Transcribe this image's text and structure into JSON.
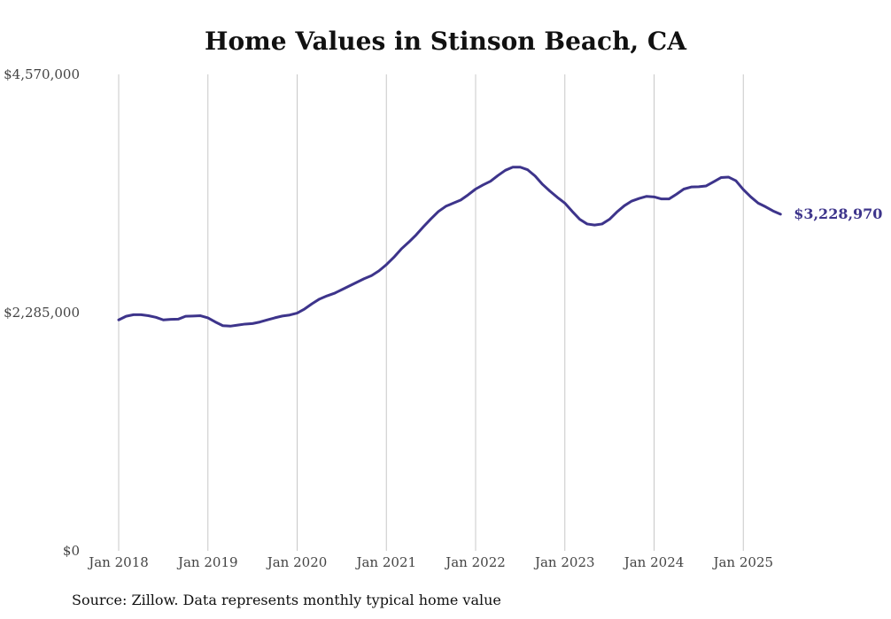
{
  "chart_data": {
    "type": "line",
    "title": "Home Values in Stinson Beach, CA",
    "source": "Source: Zillow. Data represents monthly typical home value",
    "xlabel": "",
    "ylabel": "",
    "ylim": [
      0,
      4570000
    ],
    "y_ticks": [
      {
        "value": 0,
        "label": "$0"
      },
      {
        "value": 2285000,
        "label": "$2,285,000"
      },
      {
        "value": 4570000,
        "label": "$4,570,000"
      }
    ],
    "x_range": [
      "2018-01",
      "2025-05"
    ],
    "x_ticks": [
      {
        "date": "2018-01",
        "label": "Jan 2018"
      },
      {
        "date": "2019-01",
        "label": "Jan 2019"
      },
      {
        "date": "2020-01",
        "label": "Jan 2020"
      },
      {
        "date": "2021-01",
        "label": "Jan 2021"
      },
      {
        "date": "2022-01",
        "label": "Jan 2022"
      },
      {
        "date": "2023-01",
        "label": "Jan 2023"
      },
      {
        "date": "2024-01",
        "label": "Jan 2024"
      },
      {
        "date": "2025-01",
        "label": "Jan 2025"
      }
    ],
    "grid": {
      "vertical": true,
      "horizontal": false
    },
    "line_color": "#3d348b",
    "end_label": "$3,228,970",
    "series": [
      {
        "points": [
          [
            "2018-01",
            2215000
          ],
          [
            "2018-02",
            2250000
          ],
          [
            "2018-03",
            2265000
          ],
          [
            "2018-04",
            2265000
          ],
          [
            "2018-05",
            2255000
          ],
          [
            "2018-06",
            2240000
          ],
          [
            "2018-07",
            2215000
          ],
          [
            "2018-08",
            2220000
          ],
          [
            "2018-09",
            2222000
          ],
          [
            "2018-10",
            2250000
          ],
          [
            "2018-11",
            2252000
          ],
          [
            "2018-12",
            2255000
          ],
          [
            "2019-01",
            2235000
          ],
          [
            "2019-02",
            2195000
          ],
          [
            "2019-03",
            2160000
          ],
          [
            "2019-04",
            2155000
          ],
          [
            "2019-05",
            2165000
          ],
          [
            "2019-06",
            2175000
          ],
          [
            "2019-07",
            2180000
          ],
          [
            "2019-08",
            2195000
          ],
          [
            "2019-09",
            2215000
          ],
          [
            "2019-10",
            2235000
          ],
          [
            "2019-11",
            2252000
          ],
          [
            "2019-12",
            2262000
          ],
          [
            "2020-01",
            2280000
          ],
          [
            "2020-02",
            2320000
          ],
          [
            "2020-03",
            2370000
          ],
          [
            "2020-04",
            2415000
          ],
          [
            "2020-05",
            2445000
          ],
          [
            "2020-06",
            2470000
          ],
          [
            "2020-07",
            2505000
          ],
          [
            "2020-08",
            2540000
          ],
          [
            "2020-09",
            2575000
          ],
          [
            "2020-10",
            2610000
          ],
          [
            "2020-11",
            2640000
          ],
          [
            "2020-12",
            2685000
          ],
          [
            "2021-01",
            2745000
          ],
          [
            "2021-02",
            2815000
          ],
          [
            "2021-03",
            2895000
          ],
          [
            "2021-04",
            2960000
          ],
          [
            "2021-05",
            3030000
          ],
          [
            "2021-06",
            3110000
          ],
          [
            "2021-07",
            3185000
          ],
          [
            "2021-08",
            3255000
          ],
          [
            "2021-09",
            3305000
          ],
          [
            "2021-10",
            3335000
          ],
          [
            "2021-11",
            3365000
          ],
          [
            "2021-12",
            3415000
          ],
          [
            "2022-01",
            3470000
          ],
          [
            "2022-02",
            3510000
          ],
          [
            "2022-03",
            3545000
          ],
          [
            "2022-04",
            3600000
          ],
          [
            "2022-05",
            3650000
          ],
          [
            "2022-06",
            3680000
          ],
          [
            "2022-07",
            3680000
          ],
          [
            "2022-08",
            3655000
          ],
          [
            "2022-09",
            3595000
          ],
          [
            "2022-10",
            3515000
          ],
          [
            "2022-11",
            3450000
          ],
          [
            "2022-12",
            3390000
          ],
          [
            "2023-01",
            3335000
          ],
          [
            "2023-02",
            3255000
          ],
          [
            "2023-03",
            3180000
          ],
          [
            "2023-04",
            3135000
          ],
          [
            "2023-05",
            3125000
          ],
          [
            "2023-06",
            3135000
          ],
          [
            "2023-07",
            3180000
          ],
          [
            "2023-08",
            3250000
          ],
          [
            "2023-09",
            3310000
          ],
          [
            "2023-10",
            3355000
          ],
          [
            "2023-11",
            3380000
          ],
          [
            "2023-12",
            3400000
          ],
          [
            "2024-01",
            3395000
          ],
          [
            "2024-02",
            3375000
          ],
          [
            "2024-03",
            3375000
          ],
          [
            "2024-04",
            3420000
          ],
          [
            "2024-05",
            3470000
          ],
          [
            "2024-06",
            3490000
          ],
          [
            "2024-07",
            3492000
          ],
          [
            "2024-08",
            3500000
          ],
          [
            "2024-09",
            3540000
          ],
          [
            "2024-10",
            3580000
          ],
          [
            "2024-11",
            3585000
          ],
          [
            "2024-12",
            3550000
          ],
          [
            "2025-01",
            3465000
          ],
          [
            "2025-02",
            3395000
          ],
          [
            "2025-03",
            3335000
          ],
          [
            "2025-04",
            3300000
          ],
          [
            "2025-05",
            3260000
          ],
          [
            "2025-06",
            3228970
          ]
        ]
      }
    ]
  }
}
